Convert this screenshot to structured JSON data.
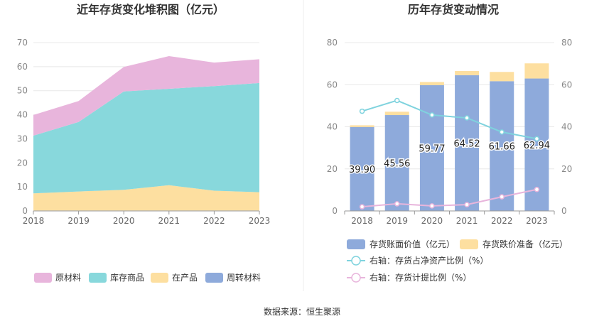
{
  "footer": {
    "source": "数据来源：恒生聚源"
  },
  "chart_data": [
    {
      "type": "area",
      "title": "近年存货变化堆积图（亿元）",
      "categories": [
        "2018",
        "2019",
        "2020",
        "2021",
        "2022",
        "2023"
      ],
      "ylim": [
        0,
        70
      ],
      "yticks": [
        0,
        10,
        20,
        30,
        40,
        50,
        60,
        70
      ],
      "stacked": true,
      "series": [
        {
          "name": "原材料",
          "color": "#e8b5dc",
          "values": [
            8.6,
            8.7,
            10.2,
            13.6,
            9.8,
            9.9
          ]
        },
        {
          "name": "库存商品",
          "color": "#88d8dc",
          "values": [
            24.0,
            28.9,
            40.9,
            40.1,
            43.5,
            45.4
          ]
        },
        {
          "name": "在产品",
          "color": "#fddfa0",
          "values": [
            7.1,
            7.9,
            8.6,
            10.5,
            8.2,
            7.6
          ]
        },
        {
          "name": "周转材料",
          "color": "#8eaadb",
          "values": [
            0.2,
            0.2,
            0.2,
            0.2,
            0.2,
            0.2
          ]
        }
      ],
      "legend_position": "bottom"
    },
    {
      "type": "bar",
      "title": "历年存货变动情况",
      "categories": [
        "2018",
        "2019",
        "2020",
        "2021",
        "2022",
        "2023"
      ],
      "ylim": [
        0,
        80
      ],
      "yticks": [
        0,
        20,
        40,
        60,
        80
      ],
      "y2lim": [
        0,
        80
      ],
      "y2ticks": [
        0,
        20,
        40,
        60,
        80
      ],
      "stacked": true,
      "series": [
        {
          "name": "存货账面价值（亿元）",
          "color": "#8eaadb",
          "values": [
            39.9,
            45.56,
            59.77,
            64.52,
            61.66,
            62.94
          ],
          "labels": [
            "39.90",
            "45.56",
            "59.77",
            "64.52",
            "61.66",
            "62.94"
          ]
        },
        {
          "name": "存货跌价准备（亿元）",
          "color": "#fddfa0",
          "values": [
            0.8,
            1.6,
            1.5,
            2.0,
            4.4,
            7.2
          ]
        }
      ],
      "lines": [
        {
          "name": "右轴：存货占净资产比例（%）",
          "color": "#7fd3de",
          "axis": "right",
          "values": [
            47.4,
            52.5,
            45.6,
            44.2,
            37.5,
            34.3
          ]
        },
        {
          "name": "右轴：存货计提比例（%）",
          "color": "#e8b5dc",
          "axis": "right",
          "values": [
            2.0,
            3.4,
            2.4,
            3.0,
            6.7,
            10.2
          ]
        }
      ],
      "legend_position": "bottom"
    }
  ]
}
